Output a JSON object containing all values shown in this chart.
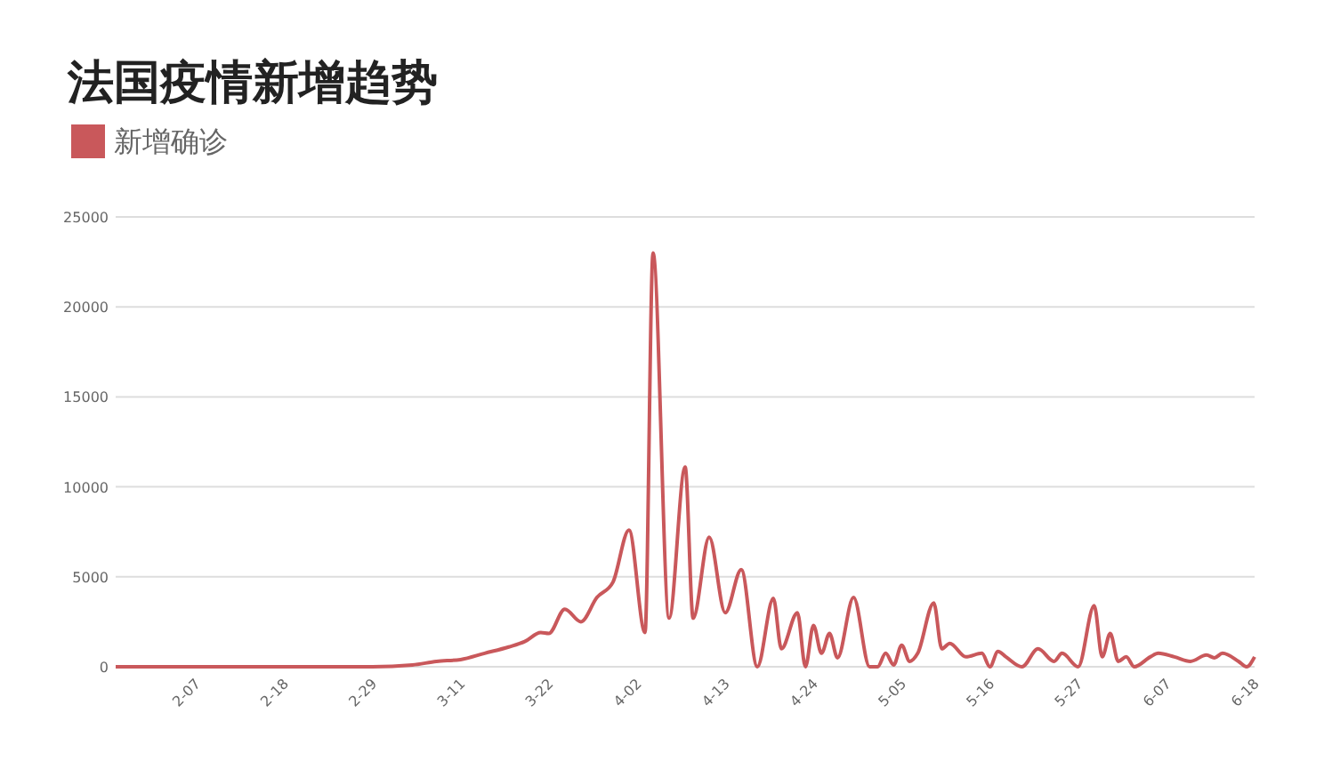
{
  "chart_data": {
    "type": "line",
    "title": "法国疫情新增趋势",
    "legend": "top left",
    "grid": "y",
    "xlim": [
      "--01-28",
      "--06-18"
    ],
    "xticks": [
      {
        "value": "--02-07",
        "label": "2-07"
      },
      {
        "value": "--02-18",
        "label": "2-18"
      },
      {
        "value": "--02-29",
        "label": "2-29"
      },
      {
        "value": "--03-11",
        "label": "3-11"
      },
      {
        "value": "--03-22",
        "label": "3-22"
      },
      {
        "value": "--04-02",
        "label": "4-02"
      },
      {
        "value": "--04-13",
        "label": "4-13"
      },
      {
        "value": "--04-24",
        "label": "4-24"
      },
      {
        "value": "--05-05",
        "label": "5-05"
      },
      {
        "value": "--05-16",
        "label": "5-16"
      },
      {
        "value": "--05-27",
        "label": "5-27"
      },
      {
        "value": "--06-07",
        "label": "6-07"
      },
      {
        "value": "--06-18",
        "label": "6-18"
      }
    ],
    "ylim": [
      0,
      25000
    ],
    "yticks": [
      0,
      5000,
      10000,
      15000,
      20000,
      25000
    ],
    "x": [
      "--01-28",
      "--02-07",
      "--02-18",
      "--02-29",
      "--03-05",
      "--03-08",
      "--03-11",
      "--03-14",
      "--03-17",
      "--03-19",
      "--03-21",
      "--03-22",
      "--03-24",
      "--03-26",
      "--03-28",
      "--03-30",
      "--04-01",
      "--04-03",
      "--04-04",
      "--04-06",
      "--04-08",
      "--04-09",
      "--04-11",
      "--04-13",
      "--04-15",
      "--04-17",
      "--04-19",
      "--04-20",
      "--04-22",
      "--04-23",
      "--04-24",
      "--04-25",
      "--04-26",
      "--04-27",
      "--04-29",
      "--05-01",
      "--05-02",
      "--05-03",
      "--05-04",
      "--05-05",
      "--05-06",
      "--05-07",
      "--05-09",
      "--05-10",
      "--05-11",
      "--05-13",
      "--05-15",
      "--05-16",
      "--05-17",
      "--05-18",
      "--05-20",
      "--05-22",
      "--05-24",
      "--05-25",
      "--05-27",
      "--05-29",
      "--05-30",
      "--05-31",
      "--06-01",
      "--06-02",
      "--06-03",
      "--06-05",
      "--06-06",
      "--06-08",
      "--06-10",
      "--06-12",
      "--06-13",
      "--06-14",
      "--06-16",
      "--06-17",
      "--06-18"
    ],
    "series": [
      {
        "name": "新增确诊",
        "color": "#c9585b",
        "values": [
          0,
          0,
          0,
          0,
          100,
          300,
          400,
          750,
          1100,
          1400,
          1900,
          1850,
          3200,
          2500,
          3850,
          4700,
          7600,
          1900,
          23000,
          2700,
          11100,
          2700,
          7200,
          3000,
          5400,
          0,
          3800,
          1000,
          3000,
          0,
          2300,
          750,
          1850,
          500,
          3850,
          0,
          0,
          750,
          100,
          1200,
          300,
          750,
          3550,
          1000,
          1300,
          550,
          750,
          0,
          850,
          550,
          0,
          1000,
          300,
          750,
          0,
          3400,
          550,
          1850,
          300,
          550,
          0,
          550,
          750,
          550,
          300,
          650,
          500,
          750,
          300,
          0,
          550
        ]
      }
    ]
  }
}
